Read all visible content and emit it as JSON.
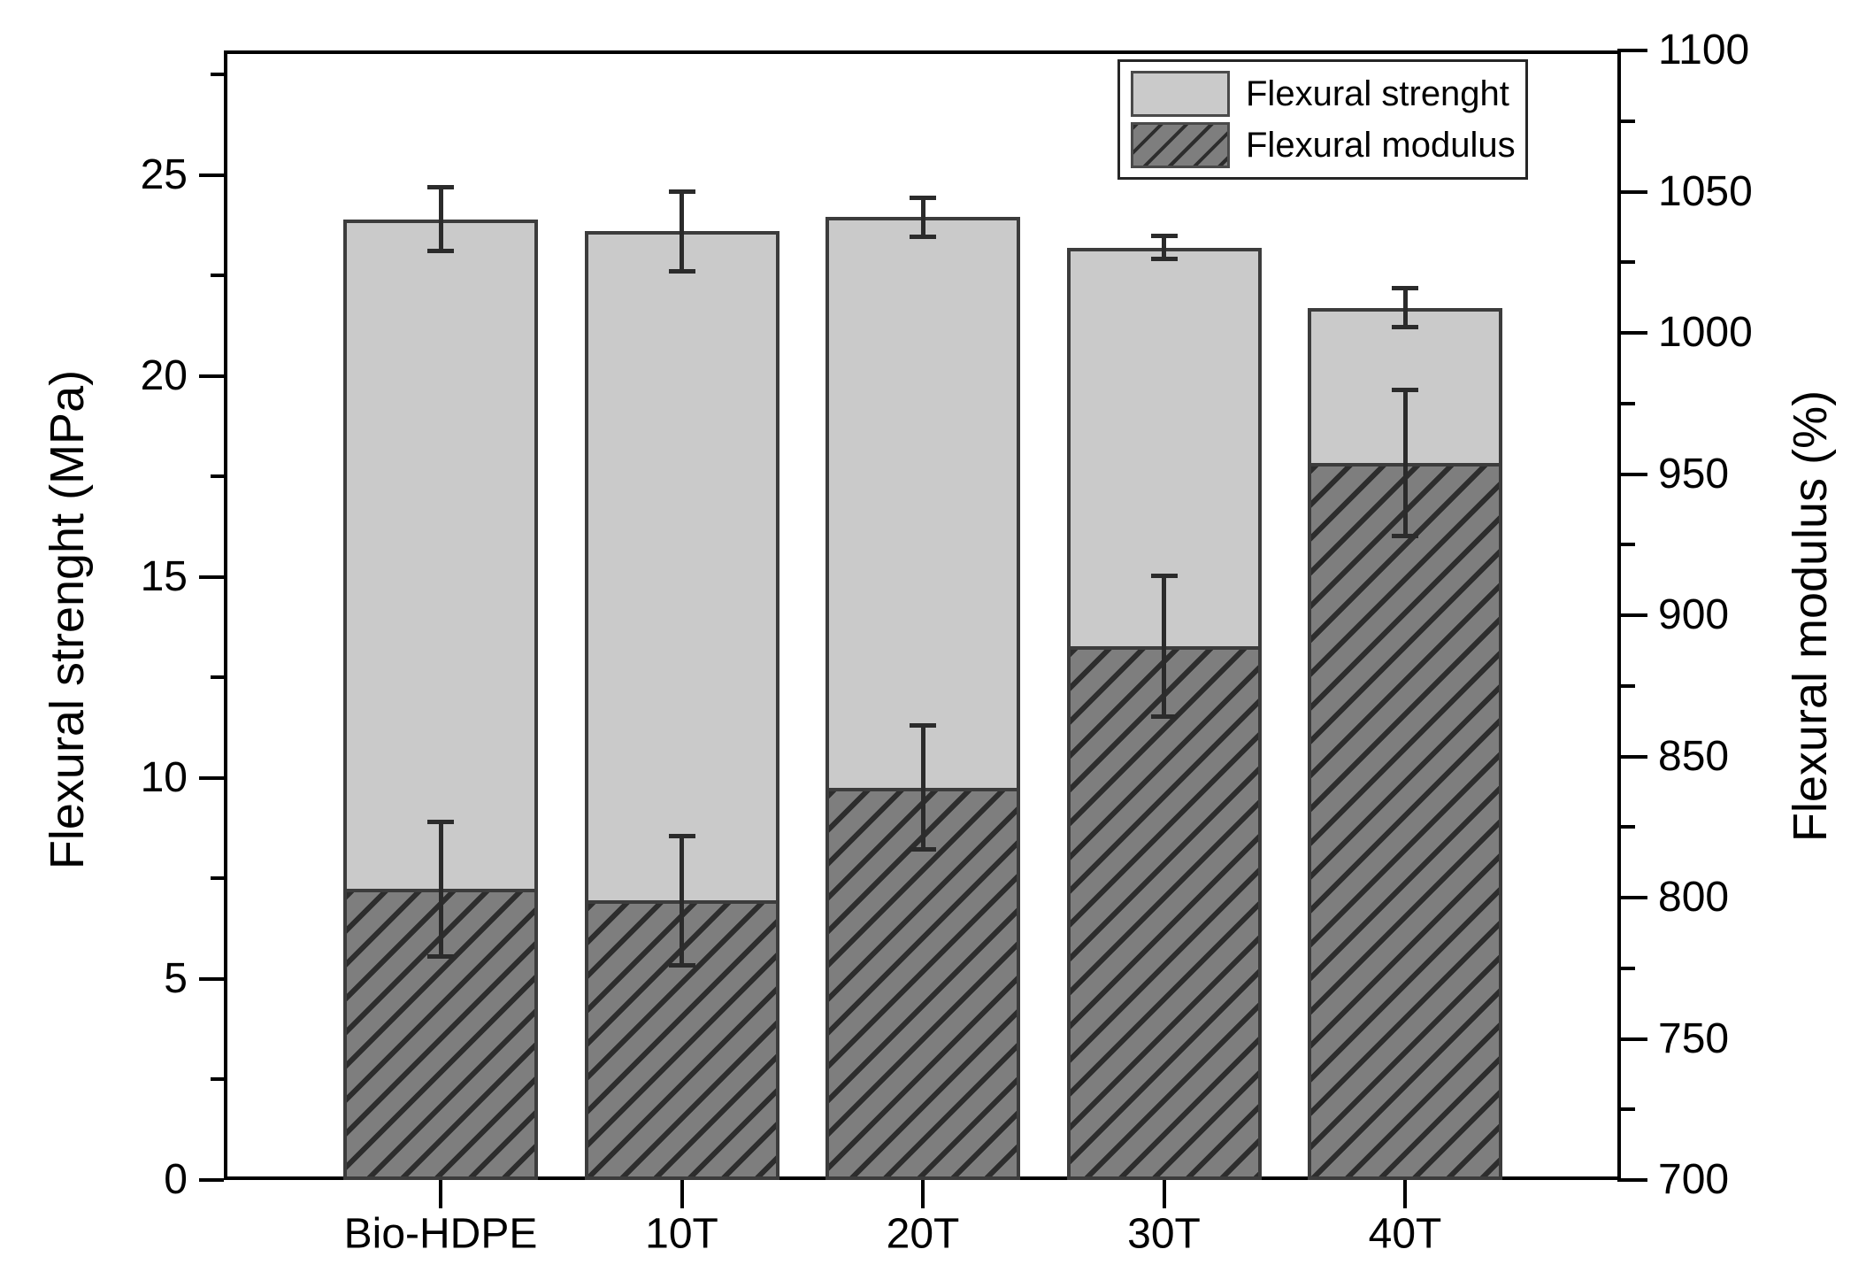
{
  "chart_data": {
    "type": "bar",
    "title": "",
    "categories": [
      "Bio-HDPE",
      "10T",
      "20T",
      "30T",
      "40T"
    ],
    "series": [
      {
        "name": "Flexural strenght",
        "axis": "left",
        "style": "solid-light",
        "values": [
          23.9,
          23.6,
          23.95,
          23.2,
          21.7
        ],
        "errors": [
          0.8,
          1.0,
          0.5,
          0.3,
          0.5
        ]
      },
      {
        "name": "Flexural modulus",
        "axis": "right",
        "style": "hatched-dark",
        "values": [
          803,
          799,
          839,
          889,
          954
        ],
        "errors": [
          24,
          23,
          22,
          25,
          26
        ]
      }
    ],
    "left_axis": {
      "title": "Flexural strenght (MPa)",
      "min": 0,
      "max": 28.1,
      "major_step": 5,
      "minor_step": 2.5,
      "major_tick_labels": [
        "0",
        "5",
        "10",
        "15",
        "20",
        "25"
      ]
    },
    "right_axis": {
      "title": "Flexural modulus (%)",
      "min": 700,
      "max": 1100,
      "major_step": 50,
      "minor_step": 25,
      "major_tick_labels": [
        "700",
        "750",
        "800",
        "850",
        "900",
        "950",
        "1000",
        "1050",
        "1100"
      ]
    },
    "legend_position": "top-right",
    "grid": false,
    "colors": {
      "light_bar": "#cacaca",
      "dark_bar": "#7e7e7e",
      "hatch_line": "#2d2d2d",
      "bar_border": "#3c3c3c",
      "error_bar": "#2b2b2b",
      "frame": "#000000"
    }
  }
}
